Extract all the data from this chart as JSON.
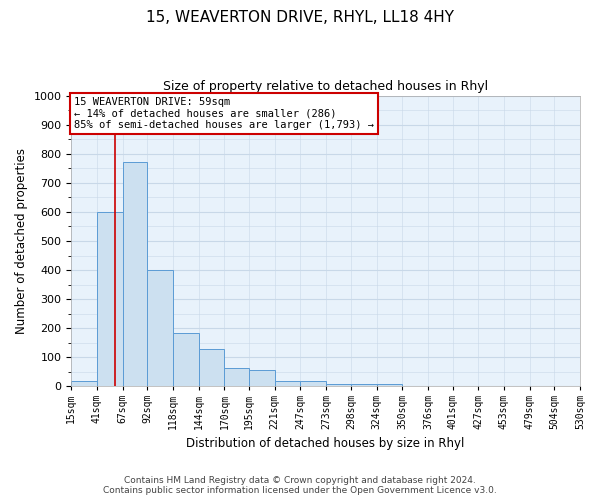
{
  "title": "15, WEAVERTON DRIVE, RHYL, LL18 4HY",
  "subtitle": "Size of property relative to detached houses in Rhyl",
  "xlabel": "Distribution of detached houses by size in Rhyl",
  "ylabel": "Number of detached properties",
  "footer_line1": "Contains HM Land Registry data © Crown copyright and database right 2024.",
  "footer_line2": "Contains public sector information licensed under the Open Government Licence v3.0.",
  "bin_edges": [
    15,
    41,
    67,
    92,
    118,
    144,
    170,
    195,
    221,
    247,
    273,
    298,
    324,
    350,
    376,
    401,
    427,
    453,
    479,
    504,
    530
  ],
  "bar_heights": [
    20,
    600,
    770,
    400,
    185,
    130,
    65,
    55,
    20,
    20,
    8,
    8,
    8,
    0,
    0,
    0,
    0,
    0,
    0,
    0
  ],
  "bar_color": "#cce0f0",
  "bar_edgecolor": "#5b9bd5",
  "grid_color": "#c8d8e8",
  "background_color": "#e8f2fb",
  "property_size": 59,
  "property_line_color": "#cc0000",
  "annotation_text": "15 WEAVERTON DRIVE: 59sqm\n← 14% of detached houses are smaller (286)\n85% of semi-detached houses are larger (1,793) →",
  "annotation_box_edgecolor": "#cc0000",
  "ylim": [
    0,
    1000
  ],
  "yticks": [
    0,
    100,
    200,
    300,
    400,
    500,
    600,
    700,
    800,
    900,
    1000
  ]
}
